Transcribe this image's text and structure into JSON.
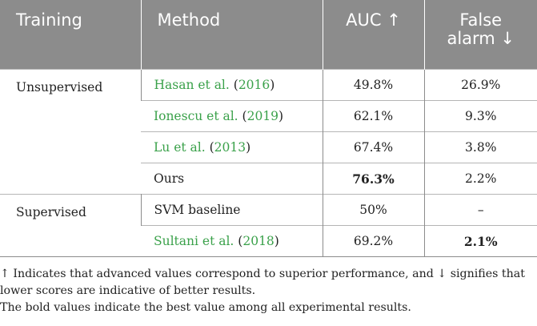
{
  "header": {
    "training": "Training",
    "method": "Method",
    "auc": "AUC ↑",
    "false_alarm_line1": "False",
    "false_alarm_line2": "alarm ↓"
  },
  "groups": [
    {
      "name": "Unsupervised",
      "rows": [
        {
          "author": "Hasan et al.",
          "year_open": " (",
          "year": "2016",
          "year_close": ")",
          "auc": "49.8%",
          "false_alarm": "26.9%"
        },
        {
          "author": "Ionescu et al.",
          "year_open": " (",
          "year": "2019",
          "year_close": ")",
          "auc": "62.1%",
          "false_alarm": "9.3%"
        },
        {
          "author": "Lu et al.",
          "year_open": " (",
          "year": "2013",
          "year_close": ")",
          "auc": "67.4%",
          "false_alarm": "3.8%"
        },
        {
          "method": "Ours",
          "auc": "76.3%",
          "false_alarm": "2.2%"
        }
      ]
    },
    {
      "name": "Supervised",
      "rows": [
        {
          "method": "SVM baseline",
          "auc": "50%",
          "false_alarm": "–"
        },
        {
          "author": "Sultani et al.",
          "year_open": " (",
          "year": "2018",
          "year_close": ")",
          "auc": "69.2%",
          "false_alarm": "2.1%"
        }
      ]
    }
  ],
  "footnotes": [
    "↑  Indicates that advanced values correspond to superior performance, and ↓  signifies that lower scores are indicative of better results.",
    "The bold values indicate the best value among all experimental results."
  ],
  "colors": {
    "header_bg": "#8c8c8c",
    "citation": "#3aa14a",
    "text": "#222222"
  }
}
